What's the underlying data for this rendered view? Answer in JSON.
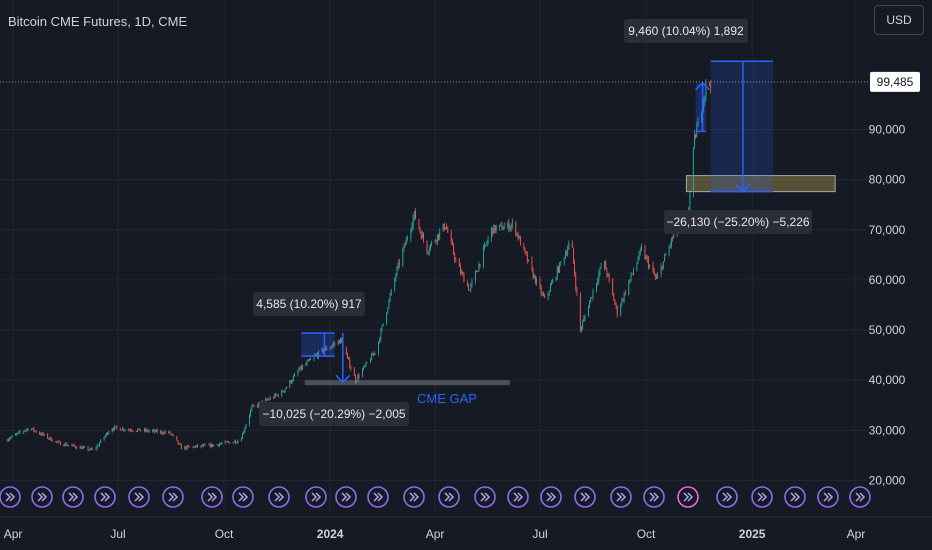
{
  "header": {
    "title": "Bitcoin CME Futures, 1D, CME"
  },
  "currency_button": {
    "label": "USD"
  },
  "last_price_label": "99,485",
  "colors": {
    "up": "#26a69a",
    "down": "#ef5350",
    "measure": "#2962ff",
    "gap": "#787b86",
    "background": "#161a25"
  },
  "chart_data": {
    "type": "candlestick",
    "title": "Bitcoin CME Futures, 1D, CME",
    "x_ticks": [
      "Apr",
      "Jul",
      "Oct",
      "2024",
      "Apr",
      "Jul",
      "Oct",
      "2025",
      "Apr"
    ],
    "y_ticks": [
      "20,000",
      "30,000",
      "40,000",
      "50,000",
      "60,000",
      "70,000",
      "80,000",
      "90,000"
    ],
    "ylim": [
      17500,
      110000
    ],
    "last_price": 99485,
    "approx_close_path": [
      {
        "date": "2023-03-25",
        "close": 28000
      },
      {
        "date": "2023-04-15",
        "close": 30500
      },
      {
        "date": "2023-05-10",
        "close": 27500
      },
      {
        "date": "2023-06-10",
        "close": 26000
      },
      {
        "date": "2023-06-25",
        "close": 30500
      },
      {
        "date": "2023-07-20",
        "close": 30000
      },
      {
        "date": "2023-08-15",
        "close": 29500
      },
      {
        "date": "2023-08-25",
        "close": 26500
      },
      {
        "date": "2023-09-20",
        "close": 27000
      },
      {
        "date": "2023-10-15",
        "close": 28000
      },
      {
        "date": "2023-10-25",
        "close": 34500
      },
      {
        "date": "2023-11-20",
        "close": 37500
      },
      {
        "date": "2023-12-05",
        "close": 42000
      },
      {
        "date": "2023-12-20",
        "close": 45000
      },
      {
        "date": "2024-01-10",
        "close": 48000
      },
      {
        "date": "2024-01-23",
        "close": 40000
      },
      {
        "date": "2024-02-10",
        "close": 46000
      },
      {
        "date": "2024-02-28",
        "close": 62000
      },
      {
        "date": "2024-03-14",
        "close": 73000
      },
      {
        "date": "2024-03-25",
        "close": 66000
      },
      {
        "date": "2024-04-10",
        "close": 71000
      },
      {
        "date": "2024-04-20",
        "close": 63000
      },
      {
        "date": "2024-05-01",
        "close": 58000
      },
      {
        "date": "2024-05-20",
        "close": 70000
      },
      {
        "date": "2024-06-08",
        "close": 71000
      },
      {
        "date": "2024-06-25",
        "close": 61000
      },
      {
        "date": "2024-07-05",
        "close": 56000
      },
      {
        "date": "2024-07-28",
        "close": 68000
      },
      {
        "date": "2024-08-05",
        "close": 50000
      },
      {
        "date": "2024-08-25",
        "close": 64000
      },
      {
        "date": "2024-09-06",
        "close": 53500
      },
      {
        "date": "2024-09-27",
        "close": 66000
      },
      {
        "date": "2024-10-10",
        "close": 60000
      },
      {
        "date": "2024-10-30",
        "close": 72000
      },
      {
        "date": "2024-11-05",
        "close": 69000
      },
      {
        "date": "2024-11-12",
        "close": 88000
      },
      {
        "date": "2024-11-22",
        "close": 98500
      },
      {
        "date": "2024-11-26",
        "close": 99485
      }
    ],
    "annotations": [
      {
        "label": "4,585 (10.20%) 917"
      },
      {
        "label": "−10,025 (−20.29%) −2,005"
      },
      {
        "label": "9,460 (10.04%) 1,892"
      },
      {
        "label": "−26,130 (−25.20%) −5,226"
      }
    ],
    "gap_label": "CME GAP",
    "gap_label_partial": "CME GAP"
  }
}
